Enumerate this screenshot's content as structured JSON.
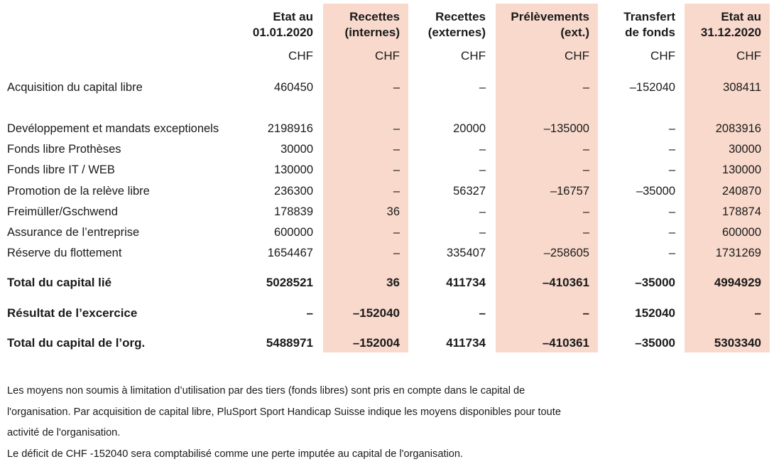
{
  "columns": [
    {
      "header": "Etat au\n01.01.2020",
      "unit": "CHF"
    },
    {
      "header": "Recettes\n(internes)",
      "unit": "CHF"
    },
    {
      "header": "Recettes\n(externes)",
      "unit": "CHF"
    },
    {
      "header": "Prélèvements\n(ext.)",
      "unit": "CHF"
    },
    {
      "header": "Transfert\nde fonds",
      "unit": "CHF"
    },
    {
      "header": "Etat au\n31.12.2020",
      "unit": "CHF"
    }
  ],
  "rows": [
    {
      "label": "Acquisition du capital libre",
      "bold": false,
      "values": [
        "460450",
        "–",
        "–",
        "–",
        "–152040",
        "308411"
      ]
    },
    {
      "label": "Devéloppement et mandats exceptionels",
      "bold": false,
      "values": [
        "2198916",
        "–",
        "20000",
        "–135000",
        "–",
        "2083916"
      ]
    },
    {
      "label": "Fonds libre Prothèses",
      "bold": false,
      "values": [
        "30000",
        "–",
        "–",
        "–",
        "–",
        "30000"
      ]
    },
    {
      "label": "Fonds libre IT / WEB",
      "bold": false,
      "values": [
        "130000",
        "–",
        "–",
        "–",
        "–",
        "130000"
      ]
    },
    {
      "label": "Promotion de la relève libre",
      "bold": false,
      "values": [
        "236300",
        "–",
        "56327",
        "–16757",
        "–35000",
        "240870"
      ]
    },
    {
      "label": "Freimüller/Gschwend",
      "bold": false,
      "values": [
        "178839",
        "36",
        "–",
        "–",
        "–",
        "178874"
      ]
    },
    {
      "label": "Assurance de l’entreprise",
      "bold": false,
      "values": [
        "600000",
        "–",
        "–",
        "–",
        "–",
        "600000"
      ]
    },
    {
      "label": "Réserve du flottement",
      "bold": false,
      "values": [
        "1654467",
        "–",
        "335407",
        "–258605",
        "–",
        "1731269"
      ]
    },
    {
      "label": "Total du capital lié",
      "bold": true,
      "values": [
        "5028521",
        "36",
        "411734",
        "–410361",
        "–35000",
        "4994929"
      ]
    },
    {
      "label": "Résultat de l’excercice",
      "bold": true,
      "values": [
        "–",
        "–152040",
        "–",
        "–",
        "152040",
        "–"
      ]
    },
    {
      "label": "Total du capital de l’org.",
      "bold": true,
      "values": [
        "5488971",
        "–152004",
        "411734",
        "–410361",
        "–35000",
        "5303340"
      ]
    }
  ],
  "notes": [
    "Les moyens non soumis à limitation d’utilisation par des tiers (fonds libres) sont pris en compte dans le capital de",
    "l'organisation. Par acquisition de capital libre, PluSport Sport Handicap Suisse indique les moyens disponibles pour toute",
    "activité de l'organisation.",
    "Le déficit de CHF -152040 sera comptabilisé comme une perte imputée au capital de l'organisation."
  ],
  "colors": {
    "shade": "#f8d9cc",
    "text": "#1a1a1a"
  }
}
